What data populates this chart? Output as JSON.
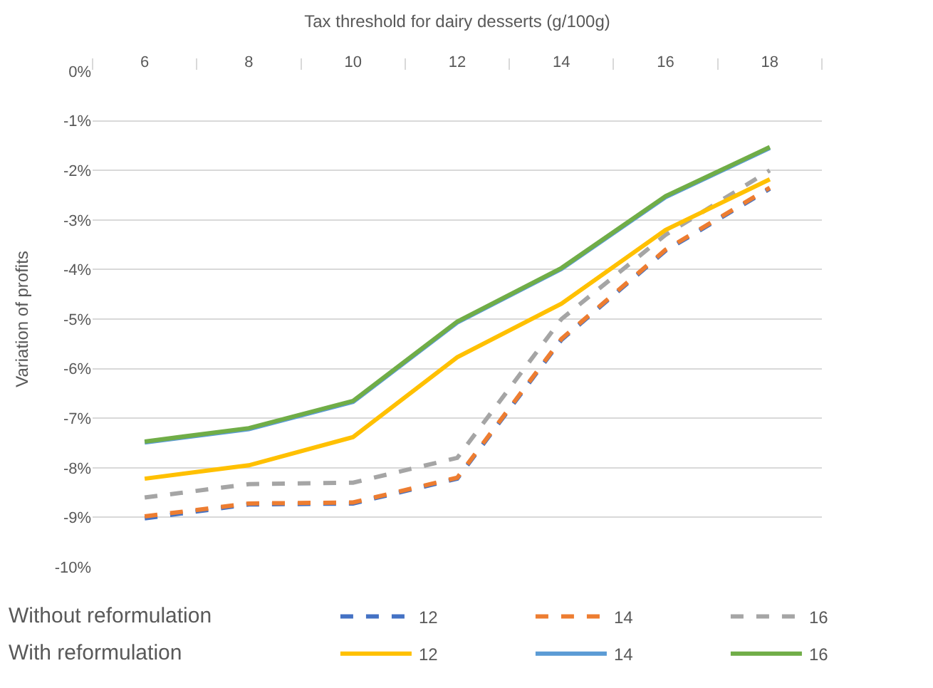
{
  "chart_data": {
    "type": "line",
    "xlabel": "Tax threshold for dairy desserts (g/100g)",
    "ylabel": "Variation of profits",
    "categories": [
      "6",
      "8",
      "10",
      "12",
      "14",
      "16",
      "18"
    ],
    "ylim": [
      -10,
      0
    ],
    "yticks": [
      {
        "value": 0,
        "label": "0%"
      },
      {
        "value": -1,
        "label": "-1%"
      },
      {
        "value": -2,
        "label": "-2%"
      },
      {
        "value": -3,
        "label": "-3%"
      },
      {
        "value": -4,
        "label": "-4%"
      },
      {
        "value": -5,
        "label": "-5%"
      },
      {
        "value": -6,
        "label": "-6%"
      },
      {
        "value": -7,
        "label": "-7%"
      },
      {
        "value": -8,
        "label": "-8%"
      },
      {
        "value": -9,
        "label": "-9%"
      },
      {
        "value": -10,
        "label": "-10%"
      }
    ],
    "grid": "y",
    "legend": "bottom",
    "marker": "none",
    "annotations": [
      "Without reformulation",
      "With reformulation"
    ],
    "series": [
      {
        "name": "12",
        "color": "#4472c4",
        "line_style": "dashed",
        "values": [
          -9.02,
          -8.74,
          -8.72,
          -8.22,
          -5.42,
          -3.62,
          -2.37
        ]
      },
      {
        "name": "14",
        "color": "#ed7d31",
        "line_style": "dashed",
        "values": [
          -8.98,
          -8.72,
          -8.7,
          -8.2,
          -5.4,
          -3.6,
          -2.35
        ]
      },
      {
        "name": "16",
        "color": "#a5a5a5",
        "line_style": "dashed",
        "values": [
          -8.6,
          -8.33,
          -8.3,
          -7.8,
          -5.0,
          -3.3,
          -2.0
        ]
      },
      {
        "name": "12",
        "color": "#ffc000",
        "line_style": "solid",
        "values": [
          -8.22,
          -7.95,
          -7.38,
          -5.77,
          -4.69,
          -3.2,
          -2.18
        ]
      },
      {
        "name": "14",
        "color": "#5b9bd5",
        "line_style": "solid",
        "values": [
          -7.49,
          -7.22,
          -6.67,
          -5.07,
          -3.99,
          -2.54,
          -1.55
        ]
      },
      {
        "name": "16",
        "color": "#70ad47",
        "line_style": "solid",
        "values": [
          -7.47,
          -7.2,
          -6.65,
          -5.05,
          -3.97,
          -2.52,
          -1.53
        ]
      }
    ]
  }
}
